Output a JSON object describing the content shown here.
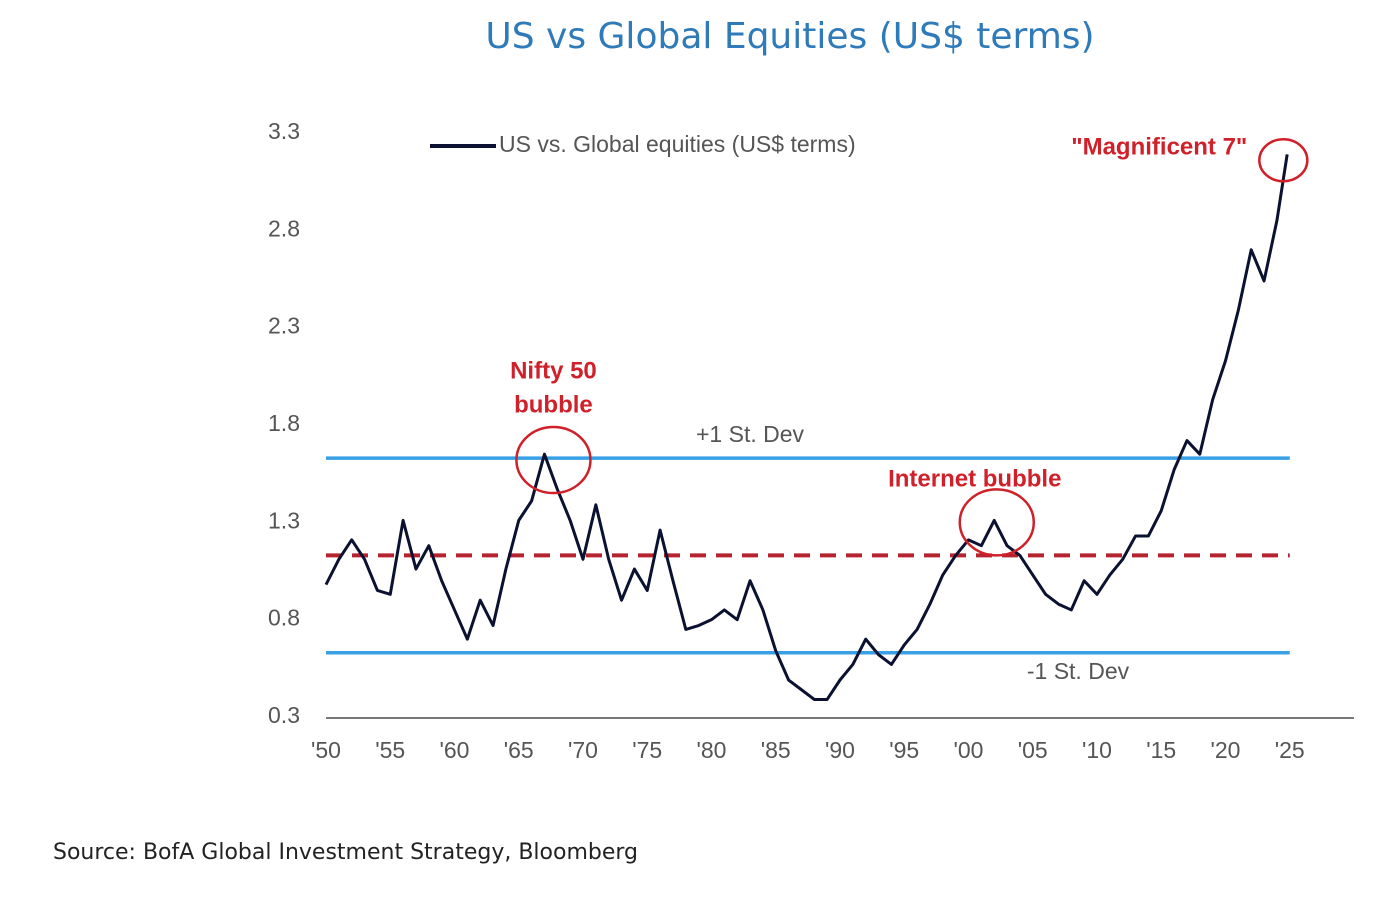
{
  "chart_data": {
    "type": "line",
    "title": "US vs Global Equities (US$ terms)",
    "source": "Source: BofA Global Investment Strategy, Bloomberg",
    "x": [
      1950,
      1951,
      1952,
      1953,
      1954,
      1955,
      1956,
      1957,
      1958,
      1959,
      1960,
      1961,
      1962,
      1963,
      1964,
      1965,
      1966,
      1967,
      1968,
      1969,
      1970,
      1971,
      1972,
      1973,
      1974,
      1975,
      1976,
      1977,
      1978,
      1979,
      1980,
      1981,
      1982,
      1983,
      1984,
      1985,
      1986,
      1987,
      1988,
      1989,
      1990,
      1991,
      1992,
      1993,
      1994,
      1995,
      1996,
      1997,
      1998,
      1999,
      2000,
      2001,
      2002,
      2003,
      2004,
      2005,
      2006,
      2007,
      2008,
      2009,
      2010,
      2011,
      2012,
      2013,
      2014,
      2015,
      2016,
      2017,
      2018,
      2019,
      2020,
      2021,
      2022,
      2023,
      2024,
      2024.8
    ],
    "series": [
      {
        "name": "US vs. Global equities (US$ terms)",
        "color": "#0b1130",
        "values": [
          0.98,
          1.11,
          1.21,
          1.11,
          0.95,
          0.93,
          1.31,
          1.06,
          1.18,
          1.0,
          0.85,
          0.7,
          0.9,
          0.77,
          1.06,
          1.31,
          1.41,
          1.65,
          1.47,
          1.31,
          1.11,
          1.39,
          1.11,
          0.9,
          1.06,
          0.95,
          1.26,
          1.0,
          0.75,
          0.77,
          0.8,
          0.85,
          0.8,
          1.0,
          0.85,
          0.64,
          0.49,
          0.44,
          0.39,
          0.39,
          0.49,
          0.57,
          0.7,
          0.62,
          0.57,
          0.67,
          0.75,
          0.88,
          1.03,
          1.13,
          1.21,
          1.18,
          1.31,
          1.18,
          1.13,
          1.03,
          0.93,
          0.88,
          0.85,
          1.0,
          0.93,
          1.03,
          1.11,
          1.23,
          1.23,
          1.36,
          1.57,
          1.72,
          1.65,
          1.93,
          2.13,
          2.39,
          2.7,
          2.54,
          2.85,
          3.19
        ]
      }
    ],
    "xlim": [
      1950,
      2030
    ],
    "xticks": [
      {
        "value": 1950,
        "label": "'50"
      },
      {
        "value": 1955,
        "label": "'55"
      },
      {
        "value": 1960,
        "label": "'60"
      },
      {
        "value": 1965,
        "label": "'65"
      },
      {
        "value": 1970,
        "label": "'70"
      },
      {
        "value": 1975,
        "label": "'75"
      },
      {
        "value": 1980,
        "label": "'80"
      },
      {
        "value": 1985,
        "label": "'85"
      },
      {
        "value": 1990,
        "label": "'90"
      },
      {
        "value": 1995,
        "label": "'95"
      },
      {
        "value": 2000,
        "label": "'00"
      },
      {
        "value": 2005,
        "label": "'05"
      },
      {
        "value": 2010,
        "label": "'10"
      },
      {
        "value": 2015,
        "label": "'15"
      },
      {
        "value": 2020,
        "label": "'20"
      },
      {
        "value": 2025,
        "label": "'25"
      }
    ],
    "ylim": [
      0.3,
      3.3
    ],
    "yticks": [
      0.3,
      0.8,
      1.3,
      1.8,
      2.3,
      2.8,
      3.3
    ],
    "reference_lines": [
      {
        "value": 1.63,
        "label": "+1 St. Dev",
        "color": "#3aa0e6",
        "style": "solid"
      },
      {
        "value": 1.13,
        "color": "#b5232f",
        "style": "dashed"
      },
      {
        "value": 0.63,
        "label": "-1 St. Dev",
        "color": "#3aa0e6",
        "style": "solid"
      }
    ],
    "annotations": [
      {
        "lines": [
          "Nifty 50",
          "bubble"
        ],
        "x": 1967.7,
        "y": 1.62
      },
      {
        "lines": [
          "Internet bubble"
        ],
        "x": 2002.2,
        "y": 1.3
      },
      {
        "lines": [
          "\"Magnificent 7\""
        ],
        "x": 2024.5,
        "y": 3.16
      }
    ],
    "annotation_color": "#d0202a",
    "legend": "top-left"
  }
}
